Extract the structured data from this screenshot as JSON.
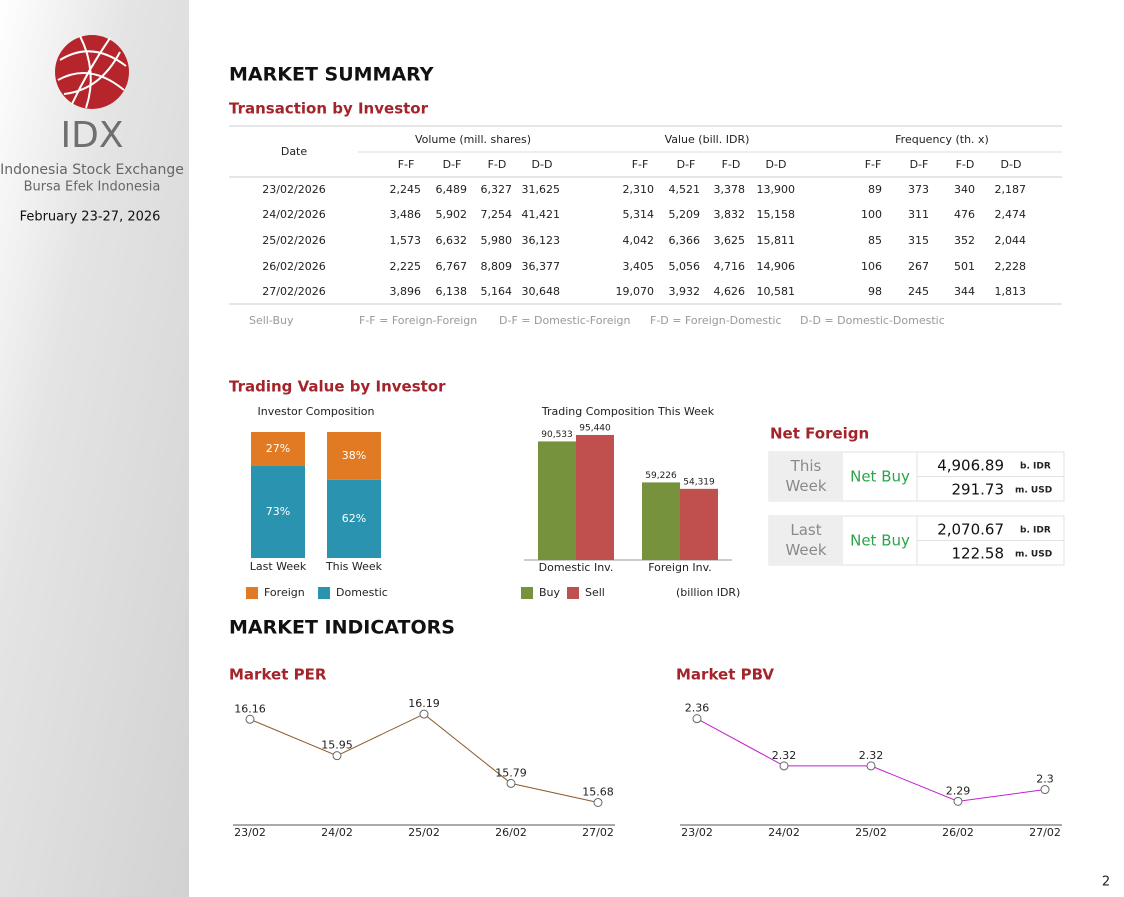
{
  "sidebar": {
    "brand": "IDX",
    "brand_line1": "Indonesia Stock Exchange",
    "brand_line2": "Bursa  Efek  Indonesia",
    "date": "February 23-27, 2026"
  },
  "market_summary": {
    "title": "MARKET SUMMARY",
    "subtitle": "Transaction by Investor",
    "table": {
      "date_header": "Date",
      "groups": [
        {
          "title": "Volume (mill. shares)",
          "columns": [
            "F-F",
            "D-F",
            "F-D",
            "D-D"
          ]
        },
        {
          "title": "Value (bill. IDR)",
          "columns": [
            "F-F",
            "D-F",
            "F-D",
            "D-D"
          ]
        },
        {
          "title": "Frequency (th. x)",
          "columns": [
            "F-F",
            "D-F",
            "F-D",
            "D-D"
          ]
        }
      ],
      "rows": [
        [
          "23/02/2026",
          "2,245",
          "6,489",
          "6,327",
          "31,625",
          "2,310",
          "4,521",
          "3,378",
          "13,900",
          "89",
          "373",
          "340",
          "2,187"
        ],
        [
          "24/02/2026",
          "3,486",
          "5,902",
          "7,254",
          "41,421",
          "5,314",
          "5,209",
          "3,832",
          "15,158",
          "100",
          "311",
          "476",
          "2,474"
        ],
        [
          "25/02/2026",
          "1,573",
          "6,632",
          "5,980",
          "36,123",
          "4,042",
          "6,366",
          "3,625",
          "15,811",
          "85",
          "315",
          "352",
          "2,044"
        ],
        [
          "26/02/2026",
          "2,225",
          "6,767",
          "8,809",
          "36,377",
          "3,405",
          "5,056",
          "4,716",
          "14,906",
          "106",
          "267",
          "501",
          "2,228"
        ],
        [
          "27/02/2026",
          "3,896",
          "6,138",
          "5,164",
          "30,648",
          "19,070",
          "3,932",
          "4,626",
          "10,581",
          "98",
          "245",
          "344",
          "1,813"
        ]
      ]
    },
    "notes": [
      "Sell-Buy",
      "F-F = Foreign-Foreign",
      "D-F = Domestic-Foreign",
      "F-D = Foreign-Domestic",
      "D-D = Domestic-Domestic"
    ]
  },
  "trading_value": {
    "title": "Trading Value by Investor"
  },
  "net_foreign": {
    "title": "Net Foreign",
    "rows": [
      {
        "period": "This Week",
        "status": "Net Buy",
        "idr": "4,906.89",
        "idr_unit": "b. IDR",
        "usd": "291.73",
        "usd_unit": "m. USD"
      },
      {
        "period": "Last Week",
        "status": "Net Buy",
        "idr": "2,070.67",
        "idr_unit": "b. IDR",
        "usd": "122.58",
        "usd_unit": "m. USD"
      }
    ]
  },
  "market_indicators": {
    "title": "MARKET INDICATORS"
  },
  "chart_data": [
    {
      "type": "stacked_bar",
      "title": "Investor Composition",
      "categories": [
        "Last Week",
        "This Week"
      ],
      "series": [
        {
          "name": "Foreign",
          "color": "#e07b24",
          "values": [
            27,
            38
          ],
          "value_labels": [
            "27%",
            "38%"
          ]
        },
        {
          "name": "Domestic",
          "color": "#2a93b0",
          "values": [
            73,
            62
          ],
          "value_labels": [
            "73%",
            "62%"
          ]
        }
      ],
      "ylim": [
        0,
        100
      ]
    },
    {
      "type": "bar",
      "title": "Trading Composition This Week",
      "categories": [
        "Domestic Inv.",
        "Foreign Inv."
      ],
      "series": [
        {
          "name": "Buy",
          "color": "#76923c",
          "values": [
            90533,
            59226
          ],
          "value_labels": [
            "90,533",
            "59,226"
          ]
        },
        {
          "name": "Sell",
          "color": "#c0504d",
          "values": [
            95440,
            54319
          ],
          "value_labels": [
            "95,440",
            "54,319"
          ]
        }
      ],
      "ylim": [
        0,
        100000
      ],
      "note": "(billion IDR)"
    },
    {
      "type": "line",
      "title": "Market PER",
      "categories": [
        "23/02",
        "24/02",
        "25/02",
        "26/02",
        "27/02"
      ],
      "values": [
        16.16,
        15.95,
        16.19,
        15.79,
        15.68
      ],
      "color": "#8b5a2b",
      "ylim": [
        15.55,
        16.3
      ]
    },
    {
      "type": "line",
      "title": "Market PBV",
      "categories": [
        "23/02",
        "24/02",
        "25/02",
        "26/02",
        "27/02"
      ],
      "values": [
        2.36,
        2.32,
        2.32,
        2.29,
        2.3
      ],
      "color": "#c21fd0",
      "ylim": [
        2.27,
        2.38
      ]
    }
  ],
  "page_number": "2"
}
